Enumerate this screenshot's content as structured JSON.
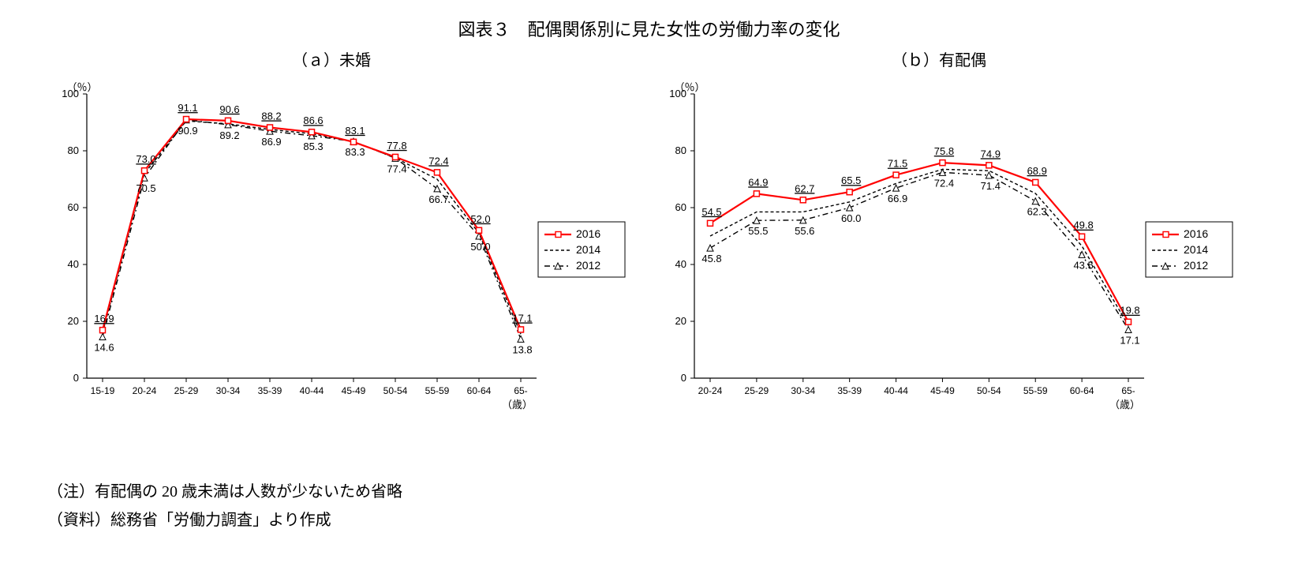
{
  "main_title": "図表３　配偶関係別に見た女性の労働力率の変化",
  "note_line1": "（注）有配偶の 20 歳未満は人数が少ないため省略",
  "note_line2": "（資料）総務省「労働力調査」より作成",
  "y_unit_label": "（％）",
  "x_unit_label": "（歳）",
  "ylim": [
    0,
    100
  ],
  "ytick_step": 20,
  "legend": {
    "items": [
      {
        "label": "2016",
        "color": "#ff0000",
        "dash": "",
        "marker": "square"
      },
      {
        "label": "2014",
        "color": "#000000",
        "dash": "4 3",
        "marker": "none"
      },
      {
        "label": "2012",
        "color": "#000000",
        "dash": "7 4 2 4",
        "marker": "triangle"
      }
    ]
  },
  "styling": {
    "background_color": "#ffffff",
    "axis_color": "#000000",
    "tick_mark_len": 5,
    "line_width_2016": 2.2,
    "line_width_other": 1.4,
    "marker_size": 7,
    "title_fontsize": 22,
    "subtitle_fontsize": 20,
    "value_label_fontsize": 13,
    "legend_fontsize": 14
  },
  "panel_a": {
    "subtitle": "（ａ）未婚",
    "type": "line",
    "categories": [
      "15-19",
      "20-24",
      "25-29",
      "30-34",
      "35-39",
      "40-44",
      "45-49",
      "50-54",
      "55-59",
      "60-64",
      "65-"
    ],
    "series": {
      "s2016": [
        16.9,
        73.0,
        91.1,
        90.6,
        88.2,
        86.6,
        83.1,
        77.8,
        72.4,
        52.0,
        17.1
      ],
      "s2014": [
        16.0,
        72.0,
        90.5,
        89.5,
        87.5,
        86.0,
        83.2,
        77.5,
        70.0,
        51.0,
        15.5
      ],
      "s2012": [
        14.6,
        70.5,
        90.9,
        89.2,
        86.9,
        85.3,
        83.3,
        77.4,
        66.7,
        50.0,
        13.8
      ]
    },
    "labels_top": [
      "16.9",
      "73.0",
      "91.1",
      "90.6",
      "88.2",
      "86.6",
      "83.1",
      "77.8",
      "72.4",
      "52.0",
      "17.1"
    ],
    "labels_bottom": [
      "14.6",
      "70.5",
      "90.9",
      "89.2",
      "86.9",
      "85.3",
      "83.3",
      "77.4",
      "66.7",
      "50.0",
      "13.8"
    ]
  },
  "panel_b": {
    "subtitle": "（ｂ）有配偶",
    "type": "line",
    "categories": [
      "20-24",
      "25-29",
      "30-34",
      "35-39",
      "40-44",
      "45-49",
      "50-54",
      "55-59",
      "60-64",
      "65-"
    ],
    "series": {
      "s2016": [
        54.5,
        64.9,
        62.7,
        65.5,
        71.5,
        75.8,
        74.9,
        68.9,
        49.8,
        19.8
      ],
      "s2014": [
        50.0,
        58.5,
        58.5,
        62.0,
        68.5,
        73.5,
        73.0,
        65.0,
        46.5,
        18.5
      ],
      "s2012": [
        45.8,
        55.5,
        55.6,
        60.0,
        66.9,
        72.4,
        71.4,
        62.3,
        43.5,
        17.1
      ]
    },
    "labels_top": [
      "54.5",
      "64.9",
      "62.7",
      "65.5",
      "71.5",
      "75.8",
      "74.9",
      "68.9",
      "49.8",
      "19.8"
    ],
    "labels_bottom": [
      "45.8",
      "55.5",
      "55.6",
      "60.0",
      "66.9",
      "72.4",
      "71.4",
      "62.3",
      "43.5",
      "17.1"
    ]
  }
}
